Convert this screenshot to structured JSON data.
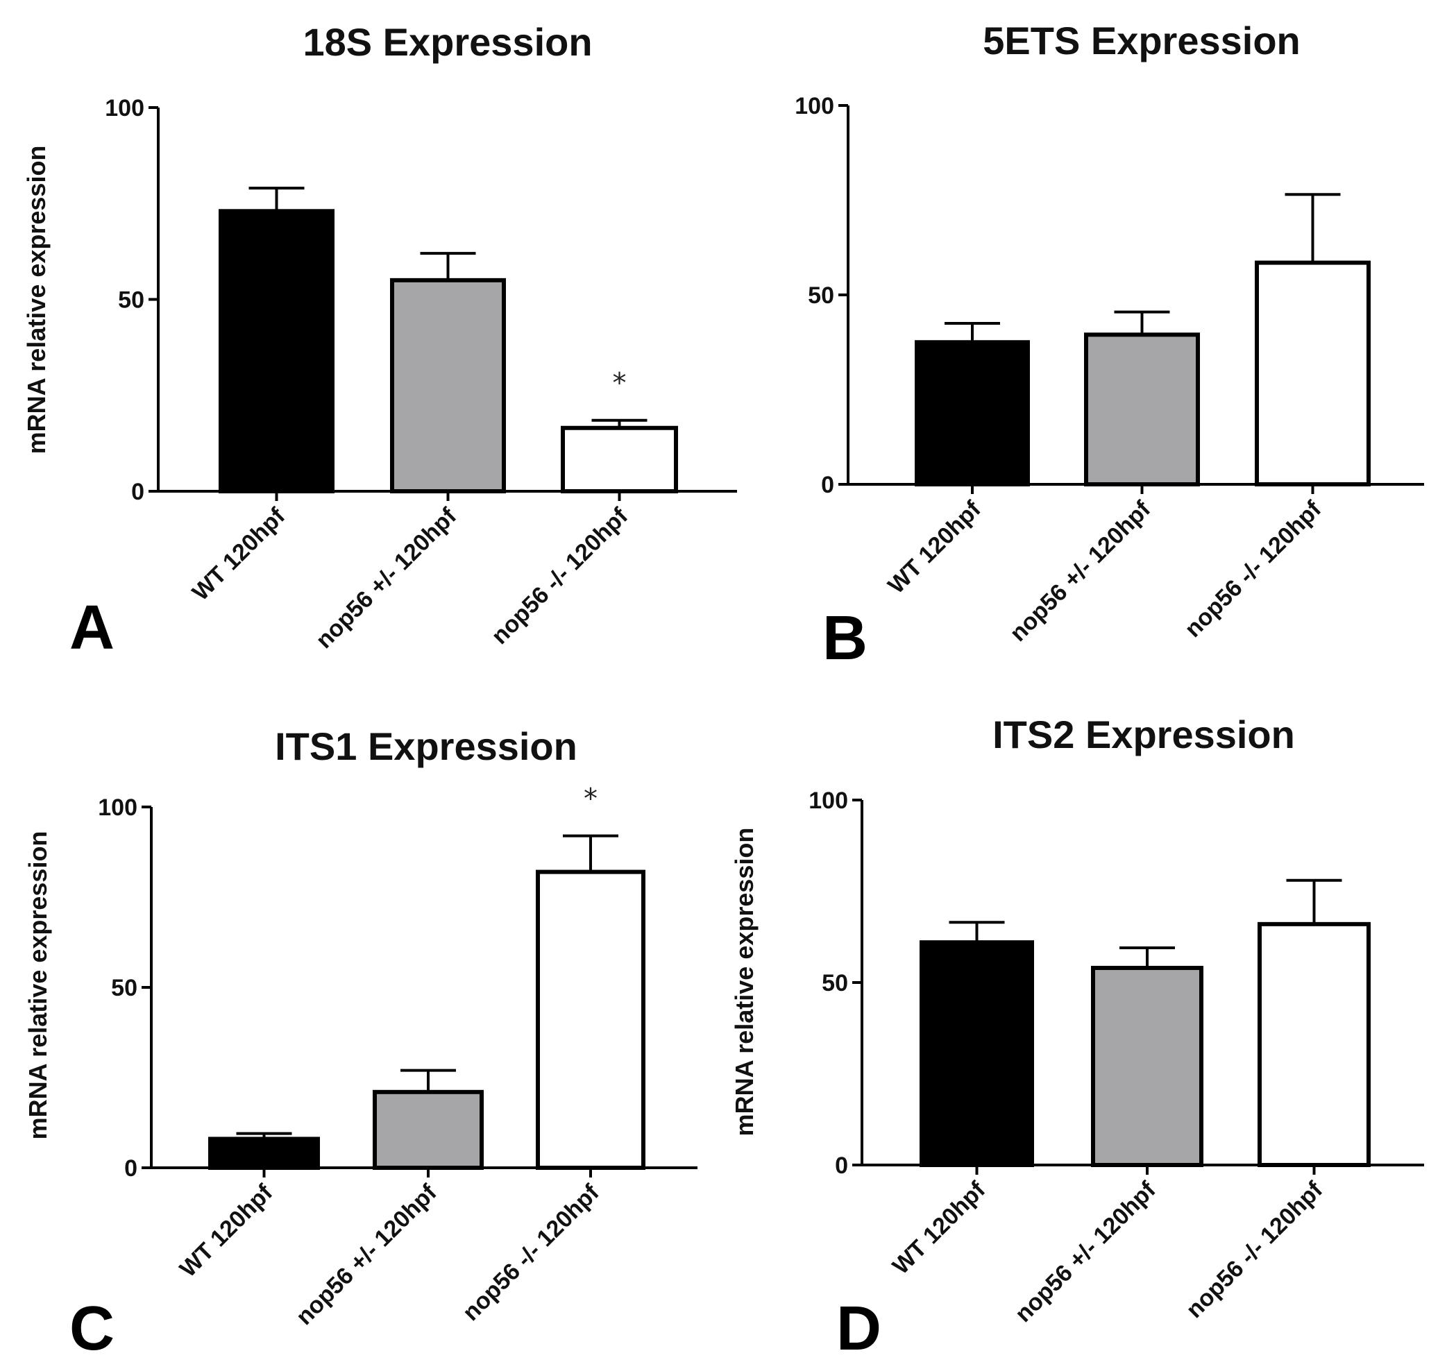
{
  "chart_data": [
    {
      "panel": "A",
      "type": "bar",
      "title": "18S Expression",
      "ylabel": "mRNA relative expression",
      "xlabel": "",
      "ylim": [
        0,
        100
      ],
      "yticks": [
        0,
        50,
        100
      ],
      "categories": [
        "WT 120hpf",
        "nop56 +/- 120hpf",
        "nop56 -/- 120hpf"
      ],
      "values": [
        73,
        55,
        16.5
      ],
      "errors": [
        6,
        7,
        2
      ],
      "fills": [
        "#000000",
        "#a6a6a8",
        "#ffffff"
      ],
      "annotations": [
        "",
        "",
        "*"
      ]
    },
    {
      "panel": "B",
      "type": "bar",
      "title": "5ETS Expression",
      "ylabel": "",
      "xlabel": "",
      "ylim": [
        0,
        100
      ],
      "yticks": [
        0,
        50,
        100
      ],
      "categories": [
        "WT 120hpf",
        "nop56 +/- 120hpf",
        "nop56 -/- 120hpf"
      ],
      "values": [
        37.5,
        39.5,
        58.5
      ],
      "errors": [
        5,
        6,
        18
      ],
      "fills": [
        "#000000",
        "#a6a6a8",
        "#ffffff"
      ],
      "annotations": [
        "",
        "",
        ""
      ]
    },
    {
      "panel": "C",
      "type": "bar",
      "title": "ITS1 Expression",
      "ylabel": "mRNA relative expression",
      "xlabel": "",
      "ylim": [
        0,
        100
      ],
      "yticks": [
        0,
        50,
        100
      ],
      "categories": [
        "WT 120hpf",
        "nop56 +/- 120hpf",
        "nop56 -/- 120hpf"
      ],
      "values": [
        8,
        21,
        82
      ],
      "errors": [
        1.5,
        6,
        10
      ],
      "fills": [
        "#000000",
        "#a6a6a8",
        "#ffffff"
      ],
      "annotations": [
        "",
        "",
        "*"
      ]
    },
    {
      "panel": "D",
      "type": "bar",
      "title": "ITS2 Expression",
      "ylabel": "mRNA relative expression",
      "xlabel": "",
      "ylim": [
        0,
        100
      ],
      "yticks": [
        0,
        50,
        100
      ],
      "categories": [
        "WT 120hpf",
        "nop56 +/- 120hpf",
        "nop56 -/- 120hpf"
      ],
      "values": [
        61,
        54,
        66
      ],
      "errors": [
        5.5,
        5.5,
        12
      ],
      "fills": [
        "#000000",
        "#a6a6a8",
        "#ffffff"
      ],
      "annotations": [
        "",
        "",
        ""
      ]
    }
  ]
}
